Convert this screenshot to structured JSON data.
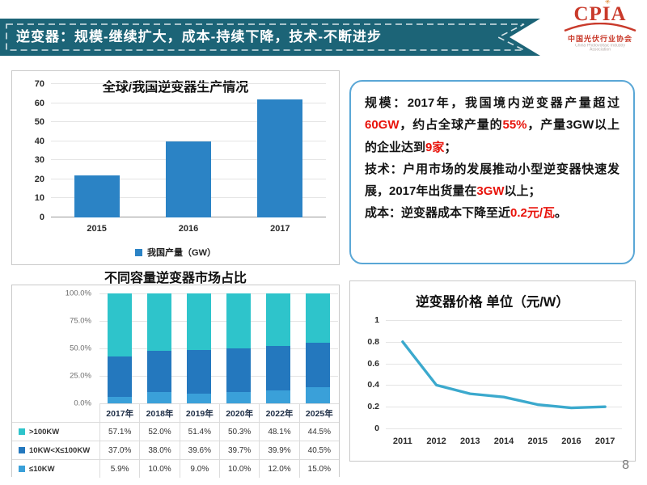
{
  "banner": {
    "title": "逆变器：规模-继续扩大，成本-持续下降，技术-不断进步"
  },
  "logo": {
    "text": "CPIA",
    "subtitle_cn": "中国光伏行业协会",
    "subtitle_en": "China Photovoltaic Industry Association"
  },
  "info_box": {
    "paragraphs": [
      [
        {
          "t": "规模：2017年，我国境内逆变器产量超过"
        },
        {
          "t": "60GW",
          "red": true
        },
        {
          "t": "，约占全球产量的"
        },
        {
          "t": "55%",
          "red": true
        },
        {
          "t": "，产量3GW以上的企业达到"
        },
        {
          "t": "9家",
          "red": true
        },
        {
          "t": "；"
        }
      ],
      [
        {
          "t": "技术：户用市场的发展推动小型逆变器快速发展，2017年出货量在"
        },
        {
          "t": "3GW",
          "red": true
        },
        {
          "t": "以上；"
        }
      ],
      [
        {
          "t": "成本：逆变器成本下降至近"
        },
        {
          "t": "0.2元/瓦",
          "red": true
        },
        {
          "t": "。"
        }
      ]
    ]
  },
  "chart_data": [
    {
      "id": "production",
      "type": "bar",
      "title": "全球/我国逆变器生产情况",
      "categories": [
        "2015",
        "2016",
        "2017"
      ],
      "values": [
        22,
        40,
        62
      ],
      "ylim": [
        0,
        70
      ],
      "yticks": [
        0,
        10,
        20,
        30,
        40,
        50,
        60,
        70
      ],
      "legend": "我国产量（GW）",
      "legend_position": "bottom",
      "grid": true,
      "color": "#2B83C5"
    },
    {
      "id": "capacity",
      "type": "stacked_bar",
      "title": "不同容量逆变器市场占比",
      "categories": [
        "2017年",
        "2018年",
        "2019年",
        "2020年",
        "2022年",
        "2025年"
      ],
      "series": [
        {
          "name": ">100KW",
          "color": "#2EC4CB",
          "values": [
            57.1,
            52.0,
            51.4,
            50.3,
            48.1,
            44.5
          ]
        },
        {
          "name": "10KW<X≤100KW",
          "color": "#2478BE",
          "values": [
            37.0,
            38.0,
            39.6,
            39.7,
            39.9,
            40.5
          ]
        },
        {
          "name": "≤10KW",
          "color": "#3AA0D9",
          "values": [
            5.9,
            10.0,
            9.0,
            10.0,
            12.0,
            15.0
          ]
        }
      ],
      "ylim": [
        0,
        100
      ],
      "yticks": [
        0,
        25,
        50,
        75,
        100
      ],
      "ytick_suffix": "%",
      "show_table": true,
      "grid": true
    },
    {
      "id": "price",
      "type": "line",
      "title": "逆变器价格 单位（元/W）",
      "x": [
        "2011",
        "2012",
        "2013",
        "2014",
        "2015",
        "2016",
        "2017"
      ],
      "values": [
        0.8,
        0.4,
        0.32,
        0.29,
        0.22,
        0.19,
        0.2
      ],
      "ylim": [
        0,
        1
      ],
      "yticks": [
        0,
        0.2,
        0.4,
        0.6,
        0.8,
        1
      ],
      "grid": true,
      "color": "#3BA9CD"
    }
  ],
  "colors": {
    "red": "#E8130B",
    "banner": "#1C6477",
    "box_border": "#5AA7D6",
    "logo_red": "#C93A2B",
    "bar_blue": "#2B83C5",
    "line_teal": "#3BA9CD"
  },
  "page": {
    "number": "8"
  }
}
